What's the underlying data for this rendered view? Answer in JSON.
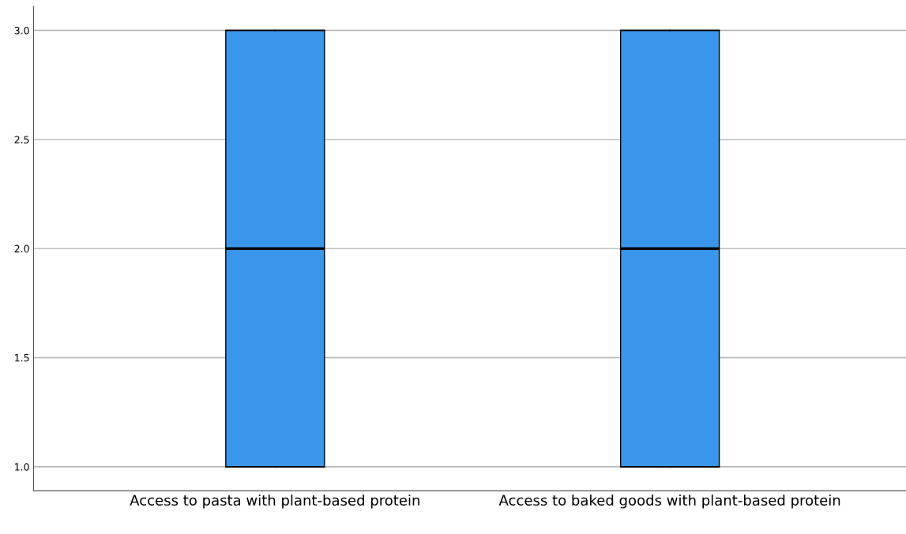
{
  "chart_data": {
    "type": "box",
    "categories": [
      "Access to pasta with plant-based protein",
      "Access to baked goods with plant-based protein"
    ],
    "boxes": [
      {
        "low": 1,
        "q1": 1,
        "median": 2,
        "q3": 3,
        "high": 3
      },
      {
        "low": 1,
        "q1": 1,
        "median": 2,
        "q3": 3,
        "high": 3
      }
    ],
    "color": "#3a96ea",
    "ylim": [
      0.89,
      3.11
    ],
    "yticks": [
      {
        "value": 1,
        "label": "1.0"
      },
      {
        "value": 1.5,
        "label": "1.5"
      },
      {
        "value": 2,
        "label": "2.0"
      },
      {
        "value": 2.5,
        "label": "2.5"
      },
      {
        "value": 3,
        "label": "3.0"
      }
    ],
    "grid": "y"
  }
}
